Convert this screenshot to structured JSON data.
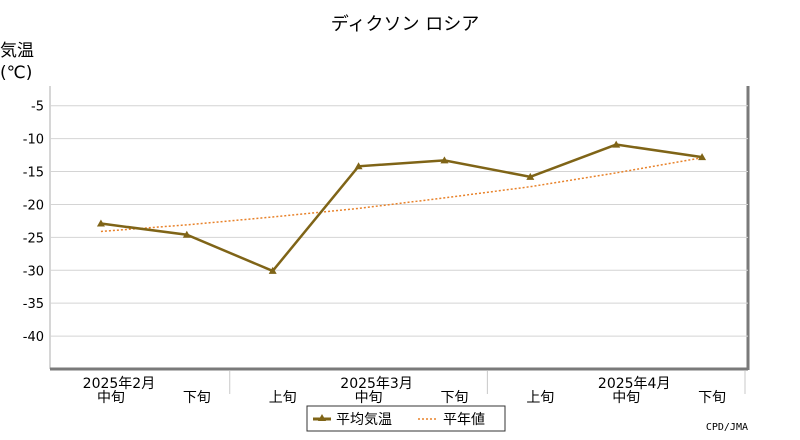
{
  "chart_data": {
    "type": "line",
    "title": "ディクソン ロシア",
    "ylabel_line1": "気温",
    "ylabel_line2": "(℃)",
    "ylim": [
      -45,
      -2
    ],
    "yticks": [
      -5,
      -10,
      -15,
      -20,
      -25,
      -30,
      -35,
      -40
    ],
    "categories": [
      "中旬",
      "下旬",
      "上旬",
      "中旬",
      "下旬",
      "上旬",
      "中旬",
      "下旬"
    ],
    "month_labels": [
      {
        "label": "2025年2月",
        "at_index": 0
      },
      {
        "label": "2025年3月",
        "at_index": 3
      },
      {
        "label": "2025年4月",
        "at_index": 6
      }
    ],
    "series": [
      {
        "name": "平均気温",
        "color": "#7f6417",
        "style": "solid",
        "marker": "triangle",
        "values": [
          -22.9,
          -24.6,
          -30.1,
          -14.2,
          -13.3,
          -15.8,
          -10.9,
          -12.8
        ]
      },
      {
        "name": "平年値",
        "color": "#e8822a",
        "style": "dotted",
        "marker": "none",
        "values": [
          -24.1,
          -23.1,
          -21.9,
          -20.6,
          -19.0,
          -17.3,
          -15.2,
          -12.9
        ]
      }
    ],
    "legend": [
      "平均気温",
      "平年値"
    ],
    "legend_position": "bottom-center",
    "credit": "CPD/JMA"
  }
}
